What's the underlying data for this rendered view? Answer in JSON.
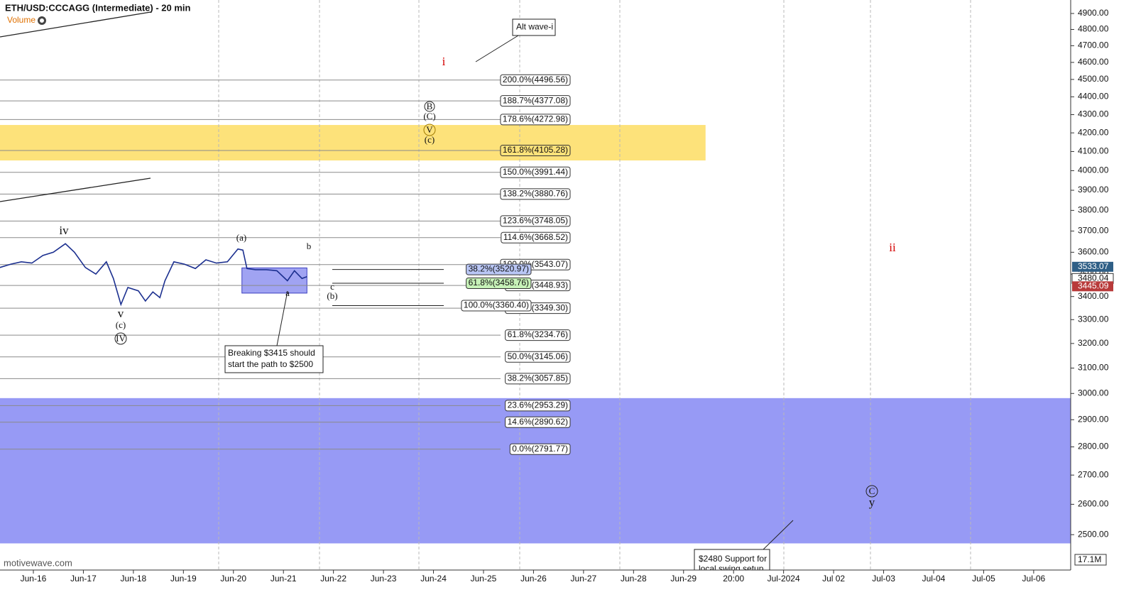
{
  "chart_data": {
    "type": "line",
    "title": "ETH/USD:CCCAGG (Intermediate) - 20 min",
    "indicator": "Volume",
    "watermark": "motivewave.com",
    "log_scale": true,
    "color": "#1b2f8f",
    "x": [
      -0.67,
      -0.45,
      -0.24,
      -0.03,
      0.19,
      0.4,
      0.64,
      0.82,
      1.04,
      1.25,
      1.46,
      1.6,
      1.75,
      1.89,
      2.1,
      2.24,
      2.39,
      2.53,
      2.63,
      2.81,
      3.02,
      3.24,
      3.45,
      3.66,
      3.88,
      4.09,
      4.19,
      4.27,
      4.44,
      4.66,
      4.87,
      5.08,
      5.22,
      5.37,
      5.47
    ],
    "values": [
      3530,
      3545,
      3556,
      3550,
      3585,
      3600,
      3640,
      3600,
      3530,
      3500,
      3556,
      3480,
      3365,
      3440,
      3425,
      3380,
      3420,
      3395,
      3470,
      3556,
      3545,
      3525,
      3565,
      3550,
      3556,
      3615,
      3610,
      3525,
      3520,
      3520,
      3515,
      3470,
      3515,
      3480,
      3488
    ],
    "xlim": [
      -0.667,
      20.74
    ],
    "xticks": [
      {
        "value": 0,
        "label": "Jun-16"
      },
      {
        "value": 1,
        "label": "Jun-17"
      },
      {
        "value": 2,
        "label": "Jun-18"
      },
      {
        "value": 3,
        "label": "Jun-19"
      },
      {
        "value": 4,
        "label": "Jun-20"
      },
      {
        "value": 5,
        "label": "Jun-21"
      },
      {
        "value": 6,
        "label": "Jun-22"
      },
      {
        "value": 7,
        "label": "Jun-23"
      },
      {
        "value": 8,
        "label": "Jun-24"
      },
      {
        "value": 9,
        "label": "Jun-25"
      },
      {
        "value": 10,
        "label": "Jun-26"
      },
      {
        "value": 11,
        "label": "Jun-27"
      },
      {
        "value": 12,
        "label": "Jun-28"
      },
      {
        "value": 13,
        "label": "Jun-29"
      },
      {
        "value": 14,
        "label": "20:00"
      },
      {
        "value": 15,
        "label": "Jul-2024"
      },
      {
        "value": 16,
        "label": "Jul 02"
      },
      {
        "value": 17,
        "label": "Jul-03"
      },
      {
        "value": 18,
        "label": "Jul-04"
      },
      {
        "value": 19,
        "label": "Jul-05"
      },
      {
        "value": 20,
        "label": "Jul-06"
      }
    ],
    "ylim": [
      2395,
      4986
    ],
    "yticks": [
      {
        "value": 2500,
        "label": "2500.00"
      },
      {
        "value": 2600,
        "label": "2600.00"
      },
      {
        "value": 2700,
        "label": "2700.00"
      },
      {
        "value": 2800,
        "label": "2800.00"
      },
      {
        "value": 2900,
        "label": "2900.00"
      },
      {
        "value": 3000,
        "label": "3000.00"
      },
      {
        "value": 3100,
        "label": "3100.00"
      },
      {
        "value": 3200,
        "label": "3200.00"
      },
      {
        "value": 3300,
        "label": "3300.00"
      },
      {
        "value": 3400,
        "label": "3400.00"
      },
      {
        "value": 3500,
        "label": "3500.00"
      },
      {
        "value": 3600,
        "label": "3600.00"
      },
      {
        "value": 3700,
        "label": "3700.00"
      },
      {
        "value": 3800,
        "label": "3800.00"
      },
      {
        "value": 3900,
        "label": "3900.00"
      },
      {
        "value": 4000,
        "label": "4000.00"
      },
      {
        "value": 4100,
        "label": "4100.00"
      },
      {
        "value": 4200,
        "label": "4200.00"
      },
      {
        "value": 4300,
        "label": "4300.00"
      },
      {
        "value": 4400,
        "label": "4400.00"
      },
      {
        "value": 4500,
        "label": "4500.00"
      },
      {
        "value": 4600,
        "label": "4600.00"
      },
      {
        "value": 4700,
        "label": "4700.00"
      },
      {
        "value": 4800,
        "label": "4800.00"
      },
      {
        "value": 4900,
        "label": "4900.00"
      }
    ],
    "zones": [
      {
        "from": 4053,
        "to": 4243,
        "color": "#fde27a",
        "xlim": [
          -0.667,
          13.44
        ]
      },
      {
        "from": 2472,
        "to": 2982,
        "color": "#979af5",
        "xlim": [
          -0.667,
          20.74
        ]
      },
      {
        "from": 3415,
        "to": 3528,
        "color": "#8f93f0",
        "xlim": [
          4.17,
          5.47
        ]
      }
    ],
    "fib_levels": [
      {
        "value": 4496.56,
        "label": "200.0%(4496.56)"
      },
      {
        "value": 4377.08,
        "label": "188.7%(4377.08)"
      },
      {
        "value": 4272.98,
        "label": "178.6%(4272.98)"
      },
      {
        "value": 4105.28,
        "label": "161.8%(4105.28)"
      },
      {
        "value": 3991.44,
        "label": "150.0%(3991.44)"
      },
      {
        "value": 3880.76,
        "label": "138.2%(3880.76)"
      },
      {
        "value": 3748.05,
        "label": "123.6%(3748.05)"
      },
      {
        "value": 3668.52,
        "label": "114.6%(3668.52)"
      },
      {
        "value": 3543.07,
        "label": "100.0%(3543.07)"
      },
      {
        "value": 3448.93,
        "label": "88.7%(3448.93)"
      },
      {
        "value": 3349.3,
        "label": "76.4%(3349.30)"
      },
      {
        "value": 3234.76,
        "label": "61.8%(3234.76)"
      },
      {
        "value": 3145.06,
        "label": "50.0%(3145.06)"
      },
      {
        "value": 3057.85,
        "label": "38.2%(3057.85)"
      },
      {
        "value": 2953.29,
        "label": "23.6%(2953.29)"
      },
      {
        "value": 2890.62,
        "label": "14.6%(2890.62)"
      },
      {
        "value": 2791.77,
        "label": "0.0%(2791.77)"
      }
    ],
    "fib_levels_2": [
      {
        "value": 3520.97,
        "label": "38.2%(3520.97)",
        "color": "#b9c6f5"
      },
      {
        "value": 3458.76,
        "label": "61.8%(3458.76)",
        "color": "#c7f2b8"
      },
      {
        "value": 3360.4,
        "label": "100.0%(3360.40)",
        "color": "#ffffff"
      }
    ],
    "price_markers": [
      {
        "value": 3533.07,
        "color": "#2f5f86"
      },
      {
        "value": 3480.04,
        "color": "#ffffff"
      },
      {
        "value": 3445.09,
        "color": "#b83a3a"
      }
    ],
    "volume_axis_label": "17.1M",
    "annotations": [
      [
        "Alt wave-i"
      ],
      [
        "Breaking $3415 should",
        "start the path to $2500"
      ],
      [
        "$2480 Support for",
        "local swing setup"
      ]
    ],
    "wave_labels": [
      "iv",
      "v",
      "(c)",
      "IV",
      "(a)",
      "b",
      "a",
      "c",
      "(b)",
      "B",
      "(C)",
      "V",
      "(c)",
      "i",
      "ii",
      "C",
      "y"
    ]
  }
}
